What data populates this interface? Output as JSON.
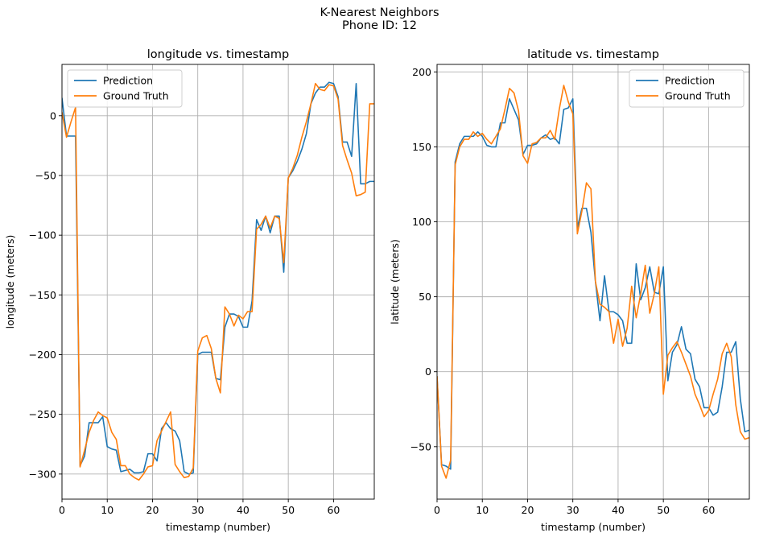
{
  "figure": {
    "title_line1": "K-Nearest Neighbors",
    "title_line2": "Phone ID: 12"
  },
  "chart_data": [
    {
      "type": "line",
      "title": "longitude vs. timestamp",
      "xlabel": "timestamp (number)",
      "ylabel": "longitude (meters)",
      "xlim": [
        0,
        69
      ],
      "ylim": [
        -321,
        43
      ],
      "xticks": [
        0,
        10,
        20,
        30,
        40,
        50,
        60
      ],
      "yticks": [
        0,
        -50,
        -100,
        -150,
        -200,
        -250,
        -300
      ],
      "grid": true,
      "legend_position": "upper-left",
      "series": [
        {
          "name": "Prediction",
          "color": "#1f77b4",
          "x": [
            0,
            1,
            2,
            3,
            4,
            5,
            6,
            7,
            8,
            9,
            10,
            11,
            12,
            13,
            14,
            15,
            16,
            17,
            18,
            19,
            20,
            21,
            22,
            23,
            24,
            25,
            26,
            27,
            28,
            29,
            30,
            31,
            32,
            33,
            34,
            35,
            36,
            37,
            38,
            39,
            40,
            41,
            42,
            43,
            44,
            45,
            46,
            47,
            48,
            49,
            50,
            51,
            52,
            53,
            54,
            55,
            56,
            57,
            58,
            59,
            60,
            61,
            62,
            63,
            64,
            65,
            66,
            67,
            68,
            69
          ],
          "values": [
            15,
            -17,
            -17,
            -17,
            -293,
            -285,
            -257,
            -257,
            -257,
            -252,
            -277,
            -279,
            -280,
            -298,
            -297,
            -296,
            -299,
            -299,
            -298,
            -283,
            -283,
            -289,
            -262,
            -257,
            -262,
            -264,
            -272,
            -298,
            -300,
            -299,
            -200,
            -198,
            -198,
            -198,
            -220,
            -221,
            -177,
            -166,
            -166,
            -168,
            -177,
            -177,
            -155,
            -87,
            -96,
            -84,
            -98,
            -84,
            -84,
            -131,
            -52,
            -46,
            -38,
            -28,
            -15,
            10,
            19,
            24,
            24,
            28,
            27,
            16,
            -22,
            -22,
            -34,
            27,
            -57,
            -57,
            -55,
            -55
          ]
        },
        {
          "name": "Ground Truth",
          "color": "#ff7f0e",
          "x": [
            0,
            1,
            2,
            3,
            4,
            5,
            6,
            7,
            8,
            9,
            10,
            11,
            12,
            13,
            14,
            15,
            16,
            17,
            18,
            19,
            20,
            21,
            22,
            23,
            24,
            25,
            26,
            27,
            28,
            29,
            30,
            31,
            32,
            33,
            34,
            35,
            36,
            37,
            38,
            39,
            40,
            41,
            42,
            43,
            44,
            45,
            46,
            47,
            48,
            49,
            50,
            51,
            52,
            53,
            54,
            55,
            56,
            57,
            58,
            59,
            60,
            61,
            62,
            63,
            64,
            65,
            66,
            67,
            68,
            69
          ],
          "values": [
            3,
            -18,
            -5,
            7,
            -294,
            -280,
            -265,
            -255,
            -248,
            -251,
            -253,
            -265,
            -271,
            -293,
            -293,
            -300,
            -303,
            -305,
            -300,
            -294,
            -293,
            -272,
            -264,
            -256,
            -248,
            -292,
            -298,
            -303,
            -302,
            -295,
            -197,
            -186,
            -184,
            -195,
            -220,
            -232,
            -160,
            -166,
            -176,
            -167,
            -170,
            -164,
            -164,
            -95,
            -91,
            -84,
            -94,
            -84,
            -86,
            -123,
            -52,
            -44,
            -33,
            -18,
            -5,
            10,
            27,
            22,
            21,
            26,
            25,
            14,
            -25,
            -37,
            -48,
            -67,
            -66,
            -64,
            10,
            10
          ]
        }
      ]
    },
    {
      "type": "line",
      "title": "latitude vs. timestamp",
      "xlabel": "timestamp (number)",
      "ylabel": "latitude (meters)",
      "xlim": [
        0,
        69
      ],
      "ylim": [
        -85,
        205
      ],
      "xticks": [
        0,
        10,
        20,
        30,
        40,
        50,
        60
      ],
      "yticks": [
        200,
        150,
        100,
        50,
        0,
        -50
      ],
      "grid": true,
      "legend_position": "upper-right",
      "series": [
        {
          "name": "Prediction",
          "color": "#1f77b4",
          "x": [
            0,
            1,
            2,
            3,
            4,
            5,
            6,
            7,
            8,
            9,
            10,
            11,
            12,
            13,
            14,
            15,
            16,
            17,
            18,
            19,
            20,
            21,
            22,
            23,
            24,
            25,
            26,
            27,
            28,
            29,
            30,
            31,
            32,
            33,
            34,
            35,
            36,
            37,
            38,
            39,
            40,
            41,
            42,
            43,
            44,
            45,
            46,
            47,
            48,
            49,
            50,
            51,
            52,
            53,
            54,
            55,
            56,
            57,
            58,
            59,
            60,
            61,
            62,
            63,
            64,
            65,
            66,
            67,
            68,
            69
          ],
          "values": [
            -3,
            -62,
            -63,
            -65,
            140,
            152,
            157,
            157,
            157,
            160,
            157,
            151,
            150,
            150,
            166,
            166,
            182,
            175,
            168,
            145,
            151,
            151,
            152,
            156,
            158,
            155,
            156,
            152,
            175,
            176,
            182,
            96,
            109,
            109,
            93,
            60,
            34,
            64,
            40,
            40,
            38,
            34,
            19,
            19,
            72,
            48,
            56,
            70,
            53,
            52,
            70,
            -6,
            13,
            18,
            30,
            15,
            12,
            -5,
            -10,
            -24,
            -24,
            -29,
            -27,
            -10,
            13,
            13,
            20,
            -18,
            -40,
            -39
          ]
        },
        {
          "name": "Ground Truth",
          "color": "#ff7f0e",
          "x": [
            0,
            1,
            2,
            3,
            4,
            5,
            6,
            7,
            8,
            9,
            10,
            11,
            12,
            13,
            14,
            15,
            16,
            17,
            18,
            19,
            20,
            21,
            22,
            23,
            24,
            25,
            26,
            27,
            28,
            29,
            30,
            31,
            32,
            33,
            34,
            35,
            36,
            37,
            38,
            39,
            40,
            41,
            42,
            43,
            44,
            45,
            46,
            47,
            48,
            49,
            50,
            51,
            52,
            53,
            54,
            55,
            56,
            57,
            58,
            59,
            60,
            61,
            62,
            63,
            64,
            65,
            66,
            67,
            68,
            69
          ],
          "values": [
            -3,
            -63,
            -71,
            -59,
            138,
            150,
            155,
            155,
            160,
            157,
            159,
            155,
            152,
            157,
            162,
            175,
            189,
            186,
            174,
            144,
            139,
            152,
            153,
            156,
            156,
            161,
            155,
            175,
            191,
            180,
            172,
            92,
            107,
            126,
            122,
            60,
            45,
            43,
            40,
            19,
            35,
            17,
            29,
            57,
            36,
            52,
            71,
            39,
            52,
            70,
            -15,
            11,
            16,
            20,
            13,
            5,
            -3,
            -15,
            -22,
            -30,
            -26,
            -15,
            -5,
            12,
            19,
            10,
            -22,
            -40,
            -45,
            -44
          ]
        }
      ]
    }
  ]
}
